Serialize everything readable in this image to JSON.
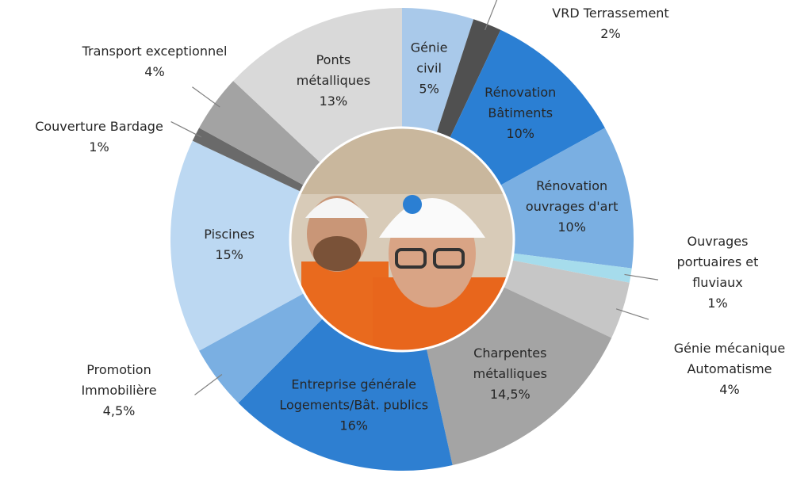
{
  "chart_data": {
    "type": "pie",
    "categories": [
      "Génie\ncivil",
      "VRD Terrassement",
      "Rénovation\nBâtiments",
      "Rénovation\nouvrages d'art",
      "Ouvrages\nportuaires et\nfluviaux",
      "Génie mécanique\nAutomatisme",
      "Charpentes\nmétalliques",
      "Entreprise générale\nLogements/Bât. publics",
      "Promotion\nImmobilière",
      "Piscines",
      "Couverture Bardage",
      "Transport exceptionnel",
      "Ponts\nmétalliques"
    ],
    "values": [
      5,
      2,
      10,
      10,
      1,
      4,
      14.5,
      16,
      4.5,
      15,
      1,
      4,
      13
    ],
    "value_labels": [
      "5%",
      "2%",
      "10%",
      "10%",
      "1%",
      "4%",
      "14,5%",
      "16%",
      "4,5%",
      "15%",
      "1%",
      "4%",
      "13%"
    ],
    "colors": [
      "#a9c9ea",
      "#505050",
      "#2b7fd3",
      "#7aafe2",
      "#a6dcec",
      "#c6c6c6",
      "#a4a4a4",
      "#2e7fd1",
      "#7aafe2",
      "#bcd8f2",
      "#6a6a6a",
      "#a3a3a3",
      "#d9d9d9"
    ]
  }
}
